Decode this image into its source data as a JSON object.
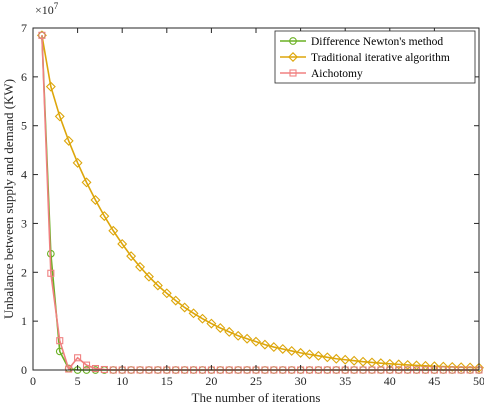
{
  "chart_data": {
    "type": "line",
    "title": "",
    "xlabel": "The number of iterations",
    "ylabel": "Unbalance between supply and demand (KW)",
    "y_exponent_label": "×10",
    "y_exponent_power": "7",
    "xlim": [
      0,
      50
    ],
    "ylim": [
      0,
      7
    ],
    "xticks": [
      0,
      5,
      10,
      15,
      20,
      25,
      30,
      35,
      40,
      45,
      50
    ],
    "yticks": [
      0,
      1,
      2,
      3,
      4,
      5,
      6,
      7
    ],
    "grid": false,
    "legend_position": "top-right",
    "series": [
      {
        "name": "Difference Newton's method",
        "color": "#6ab023",
        "marker": "circle",
        "x": [
          1,
          2,
          3,
          4,
          5,
          6,
          7,
          8,
          9,
          10,
          11,
          12,
          13,
          14,
          15,
          16,
          17,
          18,
          19,
          20,
          21,
          22,
          23,
          24,
          25,
          26,
          27,
          28,
          29,
          30,
          31,
          32,
          33,
          34,
          35,
          36,
          37,
          38,
          39,
          40,
          41,
          42,
          43,
          44,
          45,
          46,
          47,
          48,
          49,
          50
        ],
        "y": [
          6.85,
          2.38,
          0.38,
          0.03,
          0,
          0,
          0,
          0,
          0,
          0,
          0,
          0,
          0,
          0,
          0,
          0,
          0,
          0,
          0,
          0,
          0,
          0,
          0,
          0,
          0,
          0,
          0,
          0,
          0,
          0,
          0,
          0,
          0,
          0,
          0,
          0,
          0,
          0,
          0,
          0,
          0,
          0,
          0,
          0,
          0,
          0,
          0,
          0,
          0,
          0
        ]
      },
      {
        "name": "Traditional iterative algorithm",
        "color": "#dda60b",
        "marker": "diamond",
        "x": [
          1,
          2,
          3,
          4,
          5,
          6,
          7,
          8,
          9,
          10,
          11,
          12,
          13,
          14,
          15,
          16,
          17,
          18,
          19,
          20,
          21,
          22,
          23,
          24,
          25,
          26,
          27,
          28,
          29,
          30,
          31,
          32,
          33,
          34,
          35,
          36,
          37,
          38,
          39,
          40,
          41,
          42,
          43,
          44,
          45,
          46,
          47,
          48,
          49,
          50
        ],
        "y": [
          6.85,
          5.8,
          5.19,
          4.69,
          4.24,
          3.84,
          3.48,
          3.15,
          2.85,
          2.58,
          2.33,
          2.11,
          1.91,
          1.73,
          1.57,
          1.42,
          1.28,
          1.16,
          1.05,
          0.95,
          0.86,
          0.78,
          0.7,
          0.64,
          0.58,
          0.52,
          0.47,
          0.43,
          0.39,
          0.35,
          0.32,
          0.29,
          0.26,
          0.23,
          0.21,
          0.19,
          0.17,
          0.155,
          0.14,
          0.127,
          0.115,
          0.104,
          0.094,
          0.085,
          0.077,
          0.07,
          0.063,
          0.057,
          0.052,
          0.047
        ]
      },
      {
        "name": "Aichotomy",
        "color": "#f08080",
        "marker": "square",
        "x": [
          1,
          2,
          3,
          4,
          5,
          6,
          7,
          8,
          9,
          10,
          11,
          12,
          13,
          14,
          15,
          16,
          17,
          18,
          19,
          20,
          21,
          22,
          23,
          24,
          25,
          26,
          27,
          28,
          29,
          30,
          31,
          32,
          33,
          34,
          35,
          36,
          37,
          38,
          39,
          40,
          41,
          42,
          43,
          44,
          45,
          46,
          47,
          48,
          49,
          50
        ],
        "y": [
          6.85,
          1.98,
          0.6,
          0.02,
          0.25,
          0.1,
          0.03,
          0.01,
          0,
          0,
          0,
          0,
          0,
          0,
          0,
          0,
          0,
          0,
          0,
          0,
          0,
          0,
          0,
          0,
          0,
          0,
          0,
          0,
          0,
          0,
          0,
          0,
          0,
          0,
          0,
          0,
          0,
          0,
          0,
          0,
          0,
          0,
          0,
          0,
          0,
          0,
          0,
          0,
          0,
          0
        ]
      }
    ]
  }
}
